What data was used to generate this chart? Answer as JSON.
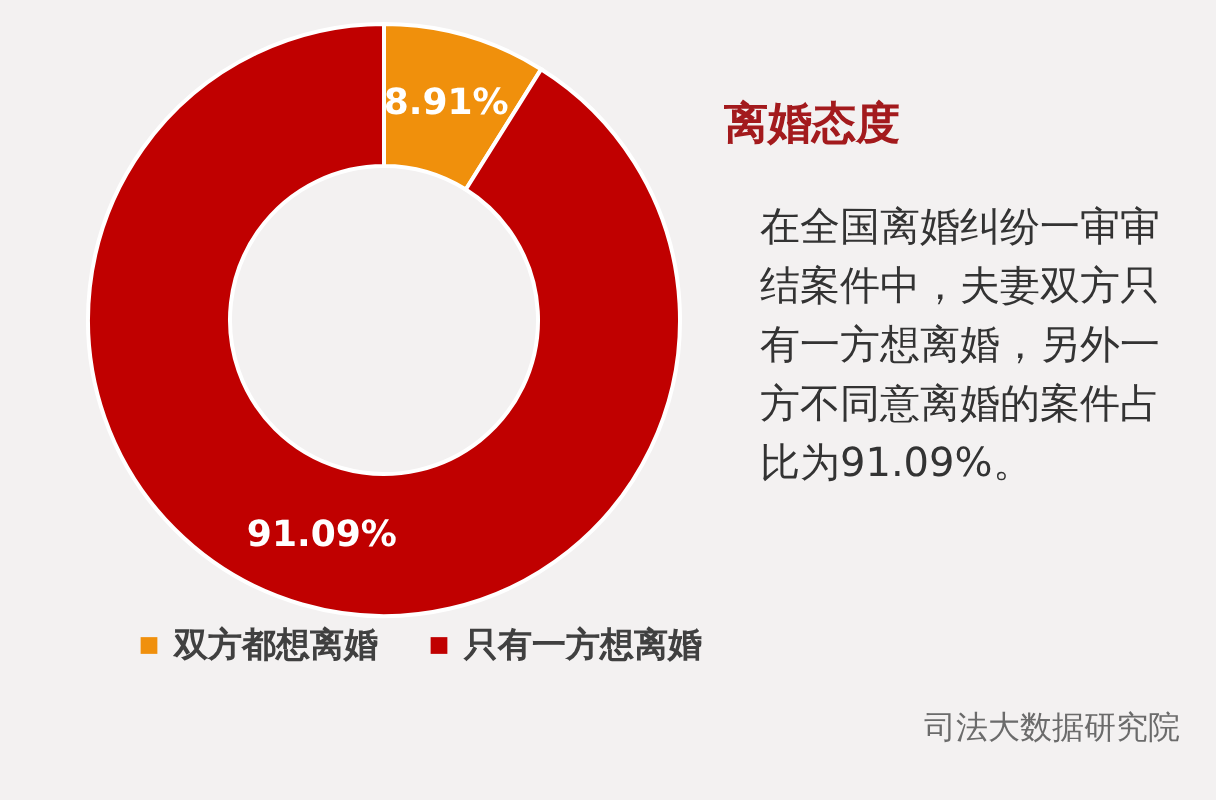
{
  "chart_data": {
    "type": "donut",
    "title": "离婚态度",
    "categories": [
      "双方都想离婚",
      "只有一方想离婚"
    ],
    "values": [
      8.91,
      91.09
    ],
    "colors": [
      "#f0900c",
      "#c00000"
    ],
    "value_labels": [
      "8.91%",
      "91.09%"
    ],
    "legend": "bottom",
    "annotations": [
      "在全国离婚纠纷一审审结案件中，夫妻双方只有一方想离婚，另外一方不同意离婚的案件占比为91.09%。",
      "司法大数据研究院"
    ]
  }
}
